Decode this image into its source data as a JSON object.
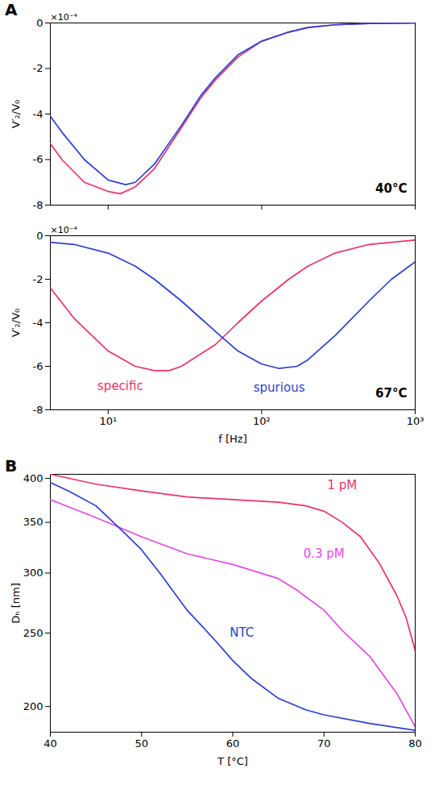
{
  "chart_data": [
    {
      "type": "line",
      "panel": "A",
      "condition": "40°C",
      "y_label": "V′₂/V₀",
      "y_multiplier": "×10⁻⁴",
      "x_label": null,
      "log": "x",
      "tick_labels": "y",
      "xlim": [
        4.2,
        1000
      ],
      "xticks": [
        {
          "value": 10,
          "label": "10¹"
        },
        {
          "value": 100,
          "label": "10²"
        },
        {
          "value": 1000,
          "label": "10³"
        }
      ],
      "ylim": [
        -8,
        0
      ],
      "yticks": [
        -8,
        -6,
        -4,
        -2,
        0
      ],
      "series": [
        {
          "color": "#e8336b",
          "x": [
            4.2,
            5,
            7,
            10,
            12,
            15,
            20,
            30,
            40,
            50,
            70,
            100,
            150,
            200,
            300,
            500,
            1000
          ],
          "values": [
            -5.3,
            -6.0,
            -7.0,
            -7.4,
            -7.5,
            -7.2,
            -6.4,
            -4.6,
            -3.3,
            -2.5,
            -1.5,
            -0.8,
            -0.4,
            -0.2,
            -0.08,
            -0.02,
            0
          ]
        },
        {
          "color": "#2a3fd4",
          "x": [
            4.2,
            5,
            7,
            10,
            13,
            15,
            20,
            30,
            40,
            50,
            70,
            100,
            150,
            200,
            300,
            500,
            1000
          ],
          "values": [
            -4.1,
            -4.8,
            -6.0,
            -6.9,
            -7.1,
            -7.0,
            -6.2,
            -4.5,
            -3.2,
            -2.4,
            -1.4,
            -0.8,
            -0.4,
            -0.2,
            -0.08,
            -0.02,
            0
          ]
        }
      ],
      "annotations": []
    },
    {
      "type": "line",
      "condition": "67°C",
      "y_label": "V′₂/V₀",
      "y_multiplier": "×10⁻⁴",
      "x_label": "f [Hz]",
      "log": "x",
      "xlim": [
        4.2,
        1000
      ],
      "xticks": [
        {
          "value": 10,
          "label": "10¹"
        },
        {
          "value": 100,
          "label": "10²"
        },
        {
          "value": 1000,
          "label": "10³"
        }
      ],
      "ylim": [
        -8,
        0
      ],
      "yticks": [
        -8,
        -6,
        -4,
        -2,
        0
      ],
      "series": [
        {
          "color": "#e8336b",
          "x": [
            4.2,
            6,
            10,
            15,
            20,
            25,
            30,
            50,
            70,
            100,
            150,
            200,
            300,
            500,
            1000
          ],
          "values": [
            -2.4,
            -3.8,
            -5.3,
            -6.0,
            -6.2,
            -6.2,
            -6.0,
            -5.0,
            -4.0,
            -3.0,
            -2.0,
            -1.4,
            -0.8,
            -0.4,
            -0.2
          ]
        },
        {
          "color": "#2a3fd4",
          "x": [
            4.2,
            6,
            10,
            15,
            20,
            30,
            50,
            70,
            100,
            130,
            170,
            200,
            300,
            500,
            700,
            1000
          ],
          "values": [
            -0.3,
            -0.4,
            -0.8,
            -1.4,
            -2.0,
            -3.0,
            -4.4,
            -5.3,
            -5.9,
            -6.1,
            -6.0,
            -5.7,
            -4.6,
            -3.0,
            -2.0,
            -1.2
          ]
        }
      ],
      "annotations": [
        {
          "text": "specific",
          "x": 12,
          "y": -6.9,
          "color": "#e8336b"
        },
        {
          "text": "spurious",
          "x": 130,
          "y": -7.0,
          "color": "#2a3fd4"
        }
      ]
    },
    {
      "type": "line",
      "panel": "B",
      "y_label": "Dₕ [nm]",
      "x_label": "T [°C]",
      "log": "y",
      "xlim": [
        40,
        80
      ],
      "xticks": [
        40,
        50,
        60,
        70,
        80
      ],
      "ylim": [
        185,
        405
      ],
      "yticks": [
        200,
        250,
        300,
        350,
        400
      ],
      "series": [
        {
          "color": "#e8336b",
          "x": [
            40,
            45,
            50,
            55,
            60,
            65,
            68,
            70,
            72,
            74,
            76,
            78,
            79,
            80
          ],
          "values": [
            405,
            393,
            385,
            378,
            375,
            372,
            368,
            362,
            350,
            335,
            310,
            280,
            262,
            237
          ]
        },
        {
          "color": "#e34be0",
          "x": [
            40,
            45,
            50,
            55,
            60,
            65,
            67,
            70,
            72,
            75,
            78,
            80
          ],
          "values": [
            375,
            355,
            335,
            318,
            308,
            295,
            285,
            268,
            252,
            233,
            208,
            188
          ]
        },
        {
          "color": "#2a3fd4",
          "x": [
            40,
            42,
            45,
            48,
            50,
            52,
            55,
            58,
            60,
            62,
            65,
            68,
            70,
            75,
            80
          ],
          "values": [
            395,
            385,
            368,
            340,
            322,
            300,
            268,
            245,
            230,
            218,
            205,
            198,
            195,
            190,
            186
          ]
        }
      ],
      "annotations": [
        {
          "text": "1 pM",
          "x": 72,
          "y": 392,
          "color": "#e8336b"
        },
        {
          "text": "0.3 pM",
          "x": 70,
          "y": 318,
          "color": "#e34be0"
        },
        {
          "text": "NTC",
          "x": 61,
          "y": 250,
          "color": "#2a3fd4"
        }
      ]
    }
  ]
}
